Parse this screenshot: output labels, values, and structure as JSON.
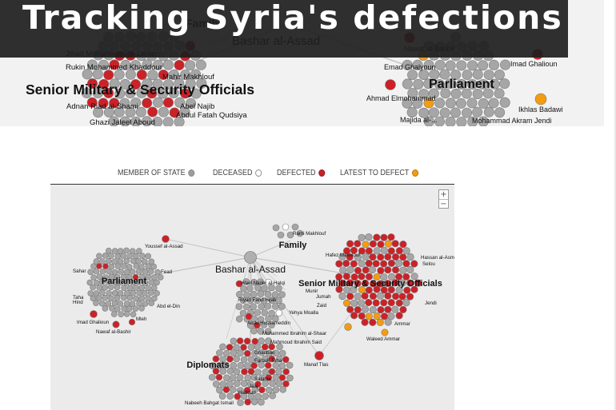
{
  "banner": {
    "title": "Tracking Syria's defections",
    "labels": {
      "family": "Family",
      "assad": "Bashar al-Assad",
      "military": "Senior Military & Security Officials",
      "parliament": "Parliament",
      "adnan": "Adnan Riad al-Shami",
      "ghazi": "Ghazi Jaleel Aboud",
      "abdulfatah": "Abdul Fatah Qudsiya",
      "abel": "Abel Najib",
      "rukin": "Rukin Mohammed Khaddour",
      "jihad": "Jihad Mohammed al-Laham",
      "mahir": "Mahir Makhlouf",
      "nawaf": "Nawaf al-Bashir",
      "emad": "Emad Ghalyoun",
      "ahmad": "Ahmad Elmohammad",
      "imad": "Imad Ghalioun",
      "ikhlas": "Ikhlas Badawi",
      "mohammad": "Mohammad Akram Jendi",
      "majida": "Majida al-..."
    }
  },
  "legend": {
    "member": "Member of State",
    "deceased": "Deceased",
    "defected": "Defected",
    "latest": "Latest to Defect"
  },
  "colors": {
    "member": "#a6a6a6",
    "deceased": "#ffffff",
    "defected": "#cc2127",
    "latest": "#f39c12",
    "banner_bar": "#1e1e1e",
    "background": "#ebebeb"
  },
  "zoom": {
    "plus": "+",
    "minus": "−"
  },
  "network": {
    "clusters": {
      "parliament": "Parliament",
      "family": "Family",
      "assad": "Bashar al-Assad",
      "military": "Senior Military & Security Officials",
      "diplomats": "Diplomats"
    },
    "people": [
      "Youssef al-Assad",
      "Rami Makhlouf",
      "Hafez Makhlouf",
      "Hassan al-Asmar",
      "Wael Nader al-Halqi",
      "Riyad Farid Hijab",
      "Abdo Hussameddin",
      "Mohammed Ibrahim al-Shaar",
      "Mahmoud Ibrahim Said",
      "Waleed Ammar",
      "Manaf Tlas",
      "Imad Ghalioun",
      "Nawaf al-Bashir",
      "Nabeeh Bahgat Ismail",
      "Farouk Taha",
      "Abd el-Din",
      "Zaid",
      "Jumah",
      "Munir",
      "Selou",
      "Yehya Moalla",
      "Sahar",
      "Taha",
      "Hind",
      "Ghadban",
      "Haddad",
      "Salame",
      "Jaaj",
      "Mleh",
      "Jendi",
      "Fead",
      "Ammar"
    ]
  }
}
